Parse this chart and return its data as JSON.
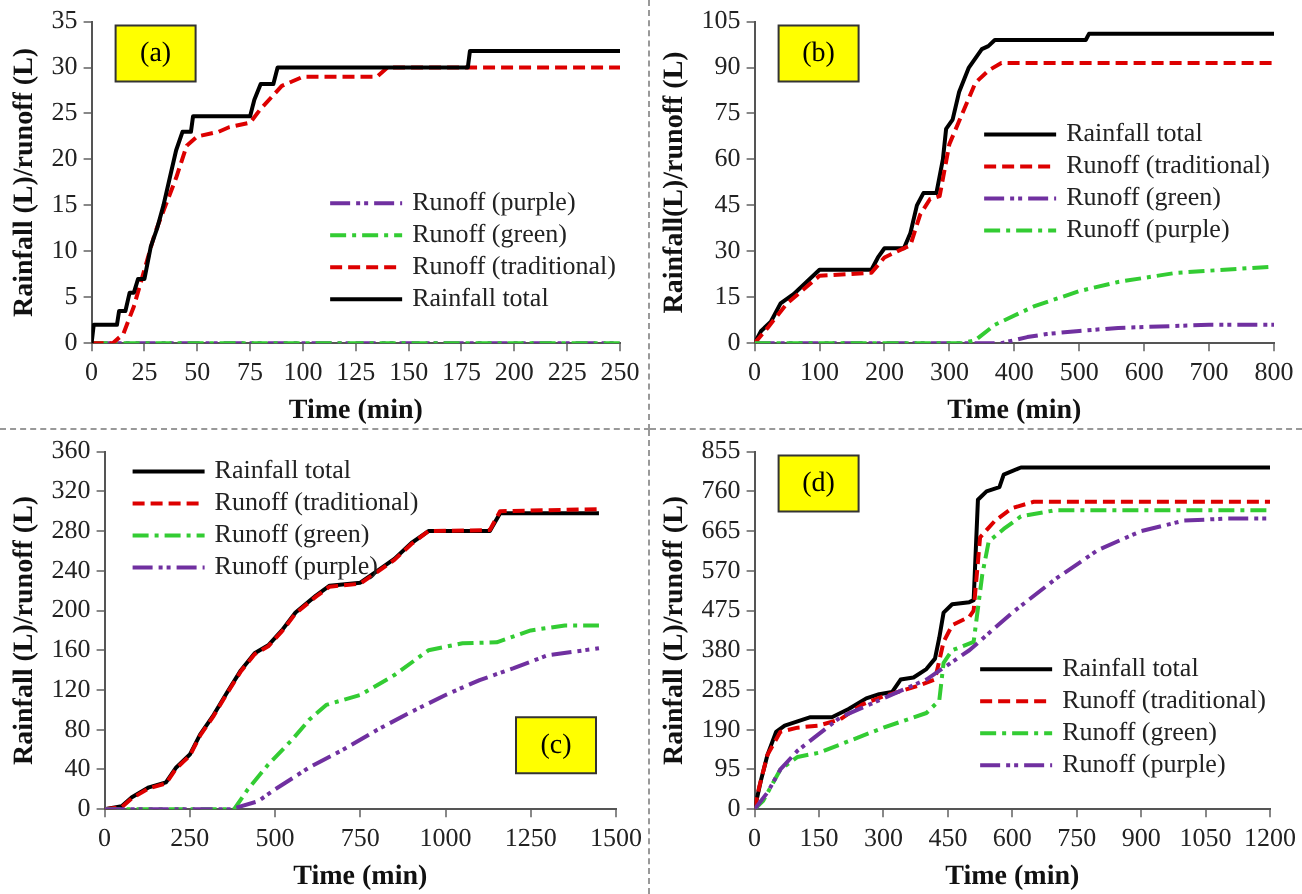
{
  "chart_data": [
    {
      "type": "line",
      "xlabel": "Time (min)",
      "ylabel": "Rainfall (L)/runoff (L)",
      "xlim": [
        0,
        250
      ],
      "xticks": [
        0,
        25,
        50,
        75,
        100,
        125,
        150,
        175,
        200,
        225,
        250
      ],
      "ylim": [
        0,
        35
      ],
      "yticks": [
        0,
        5,
        10,
        15,
        20,
        25,
        30,
        35
      ],
      "legend": "bottom right",
      "grid": false,
      "marker": "none",
      "annotations": [
        "(a)"
      ],
      "series": [
        {
          "name": "Runoff (purple)",
          "color": "#7030a0",
          "line_style": "dashdotdot",
          "x": [
            0,
            250
          ],
          "values": [
            0,
            0
          ]
        },
        {
          "name": "Runoff (green)",
          "color": "#33cc33",
          "line_style": "dashdot",
          "x": [
            0,
            250
          ],
          "values": [
            0,
            0
          ]
        },
        {
          "name": "Runoff (traditional)",
          "color": "#dd0000",
          "line_style": "dashed",
          "x": [
            0,
            10,
            15,
            20,
            25,
            30,
            35,
            40,
            45,
            50,
            60,
            65,
            75,
            80,
            90,
            100,
            135,
            140,
            250
          ],
          "values": [
            0,
            0,
            1,
            4,
            8,
            12,
            15,
            18,
            21.5,
            22.5,
            23,
            23.5,
            24,
            25.5,
            28,
            29,
            29,
            30,
            30
          ]
        },
        {
          "name": "Rainfall total",
          "color": "#000000",
          "line_style": "solid",
          "x": [
            0,
            1,
            12,
            13,
            16,
            18,
            20,
            22,
            25,
            28,
            31,
            34,
            37,
            40,
            43,
            47,
            48,
            75,
            77,
            80,
            86,
            88,
            178,
            179,
            250
          ],
          "values": [
            0,
            2,
            2,
            3.5,
            3.5,
            5.5,
            5.5,
            7,
            7,
            10.5,
            12.5,
            15,
            18,
            21,
            23,
            23,
            24.7,
            24.7,
            26.5,
            28.2,
            28.2,
            30,
            30,
            31.8,
            31.8
          ]
        }
      ]
    },
    {
      "type": "line",
      "xlabel": "Time (min)",
      "ylabel": "Rainfall(L)/runoff (L)",
      "xlim": [
        0,
        800
      ],
      "xticks": [
        0,
        100,
        200,
        300,
        400,
        500,
        600,
        700,
        800
      ],
      "ylim": [
        0,
        105
      ],
      "yticks": [
        0,
        15,
        30,
        45,
        60,
        75,
        90,
        105
      ],
      "legend": "right",
      "grid": false,
      "marker": "none",
      "annotations": [
        "(b)"
      ],
      "series": [
        {
          "name": "Rainfall total",
          "color": "#000000",
          "line_style": "solid",
          "x": [
            0,
            10,
            25,
            40,
            60,
            80,
            100,
            180,
            190,
            200,
            230,
            240,
            250,
            260,
            280,
            290,
            295,
            305,
            315,
            330,
            350,
            360,
            370,
            510,
            515,
            800
          ],
          "values": [
            0,
            4,
            7,
            13,
            16,
            20,
            24,
            24,
            28,
            31,
            31,
            36,
            45,
            49,
            49,
            60,
            70,
            73,
            82,
            90,
            96,
            97,
            99,
            99,
            101,
            101
          ]
        },
        {
          "name": "Runoff (traditional)",
          "color": "#dd0000",
          "line_style": "dashed",
          "x": [
            0,
            20,
            50,
            100,
            180,
            200,
            240,
            255,
            270,
            285,
            300,
            320,
            340,
            360,
            380,
            800
          ],
          "values": [
            0,
            5,
            13,
            22,
            23,
            28,
            32,
            42,
            47,
            48,
            65,
            75,
            85,
            89,
            91.5,
            91.5
          ]
        },
        {
          "name": "Runoff (green)",
          "color": "#7030a0",
          "line_style": "dashdotdot",
          "x": [
            0,
            380,
            420,
            450,
            500,
            560,
            700,
            800
          ],
          "values": [
            0,
            0,
            2,
            3,
            4,
            5,
            6,
            6
          ]
        },
        {
          "name": "Runoff (purple)",
          "color": "#33cc33",
          "line_style": "dashdot",
          "x": [
            0,
            320,
            340,
            370,
            430,
            500,
            560,
            650,
            800
          ],
          "values": [
            0,
            0,
            1,
            6,
            12,
            17,
            20,
            23,
            25
          ]
        }
      ]
    },
    {
      "type": "line",
      "xlabel": "Time (min)",
      "ylabel": "Rainfall (L)/runoff (L)",
      "xlim": [
        0,
        1500
      ],
      "xticks": [
        0,
        250,
        500,
        750,
        1000,
        1250,
        1500
      ],
      "ylim": [
        0,
        360
      ],
      "yticks": [
        0,
        40,
        80,
        120,
        160,
        200,
        240,
        280,
        320,
        360
      ],
      "legend": "top left",
      "grid": false,
      "marker": "none",
      "annotations": [
        "(c)"
      ],
      "series": [
        {
          "name": "Rainfall total",
          "color": "#000000",
          "line_style": "solid",
          "x": [
            0,
            50,
            80,
            130,
            180,
            210,
            250,
            280,
            320,
            360,
            400,
            440,
            480,
            520,
            560,
            620,
            660,
            750,
            800,
            850,
            900,
            950,
            1130,
            1160,
            1450
          ],
          "values": [
            0,
            3,
            12,
            22,
            27,
            42,
            55,
            75,
            95,
            118,
            140,
            157,
            165,
            180,
            198,
            215,
            225,
            228,
            240,
            252,
            268,
            280,
            280,
            298,
            298
          ]
        },
        {
          "name": "Runoff (traditional)",
          "color": "#dd0000",
          "line_style": "dashed",
          "x": [
            0,
            50,
            80,
            130,
            180,
            210,
            250,
            280,
            320,
            360,
            400,
            440,
            480,
            520,
            560,
            620,
            660,
            750,
            800,
            850,
            900,
            950,
            1130,
            1160,
            1450
          ],
          "values": [
            0,
            2,
            11,
            21,
            26,
            41,
            54,
            74,
            94,
            117,
            139,
            156,
            164,
            179,
            197,
            214,
            224,
            227,
            239,
            251,
            267,
            280,
            281,
            300,
            302
          ]
        },
        {
          "name": "Runoff (green)",
          "color": "#33cc33",
          "line_style": "dashdot",
          "x": [
            0,
            380,
            420,
            480,
            550,
            600,
            650,
            750,
            850,
            950,
            1050,
            1150,
            1250,
            1350,
            1450
          ],
          "values": [
            0,
            0,
            20,
            45,
            70,
            90,
            105,
            115,
            135,
            160,
            167,
            168,
            180,
            185,
            185
          ]
        },
        {
          "name": "Runoff (purple)",
          "color": "#7030a0",
          "line_style": "dashdotdot",
          "x": [
            0,
            370,
            450,
            500,
            600,
            700,
            800,
            900,
            1000,
            1100,
            1200,
            1300,
            1450
          ],
          "values": [
            0,
            0,
            8,
            20,
            42,
            60,
            80,
            98,
            115,
            130,
            142,
            155,
            162
          ]
        }
      ]
    },
    {
      "type": "line",
      "xlabel": "Time (min)",
      "ylabel": "Rainfall (L)/runoff (L)",
      "xlim": [
        0,
        1200
      ],
      "xticks": [
        0,
        150,
        300,
        450,
        600,
        750,
        900,
        1050,
        1200
      ],
      "ylim": [
        0,
        855
      ],
      "yticks": [
        0,
        95,
        190,
        285,
        380,
        475,
        570,
        665,
        760,
        855
      ],
      "legend": "bottom right",
      "grid": false,
      "marker": "none",
      "annotations": [
        "(d)"
      ],
      "series": [
        {
          "name": "Rainfall total",
          "color": "#000000",
          "line_style": "solid",
          "x": [
            0,
            15,
            30,
            50,
            70,
            100,
            130,
            180,
            220,
            260,
            290,
            320,
            340,
            370,
            400,
            420,
            430,
            440,
            460,
            500,
            510,
            520,
            540,
            570,
            580,
            620,
            1200
          ],
          "values": [
            0,
            70,
            130,
            185,
            200,
            210,
            220,
            220,
            240,
            265,
            275,
            280,
            310,
            315,
            335,
            360,
            410,
            470,
            490,
            495,
            500,
            740,
            760,
            770,
            800,
            817,
            817
          ]
        },
        {
          "name": "Runoff (traditional)",
          "color": "#dd0000",
          "line_style": "dashed",
          "x": [
            0,
            10,
            30,
            60,
            100,
            150,
            200,
            250,
            300,
            380,
            420,
            440,
            460,
            500,
            510,
            525,
            560,
            600,
            650,
            1200
          ],
          "values": [
            0,
            50,
            130,
            185,
            195,
            200,
            215,
            250,
            270,
            295,
            310,
            400,
            440,
            460,
            475,
            650,
            690,
            720,
            735,
            735
          ]
        },
        {
          "name": "Runoff (green)",
          "color": "#33cc33",
          "line_style": "dashdot",
          "x": [
            0,
            20,
            60,
            100,
            150,
            200,
            300,
            400,
            430,
            440,
            460,
            510,
            530,
            545,
            580,
            620,
            700,
            1200
          ],
          "values": [
            0,
            20,
            95,
            125,
            135,
            155,
            195,
            230,
            260,
            350,
            380,
            400,
            560,
            640,
            670,
            700,
            715,
            715
          ]
        },
        {
          "name": "Runoff (purple)",
          "color": "#7030a0",
          "line_style": "dashdotdot",
          "x": [
            0,
            30,
            60,
            100,
            150,
            200,
            300,
            400,
            500,
            600,
            700,
            800,
            900,
            1000,
            1100,
            1200
          ],
          "values": [
            0,
            40,
            95,
            140,
            180,
            220,
            265,
            310,
            380,
            470,
            550,
            620,
            665,
            690,
            695,
            695
          ]
        }
      ]
    }
  ]
}
